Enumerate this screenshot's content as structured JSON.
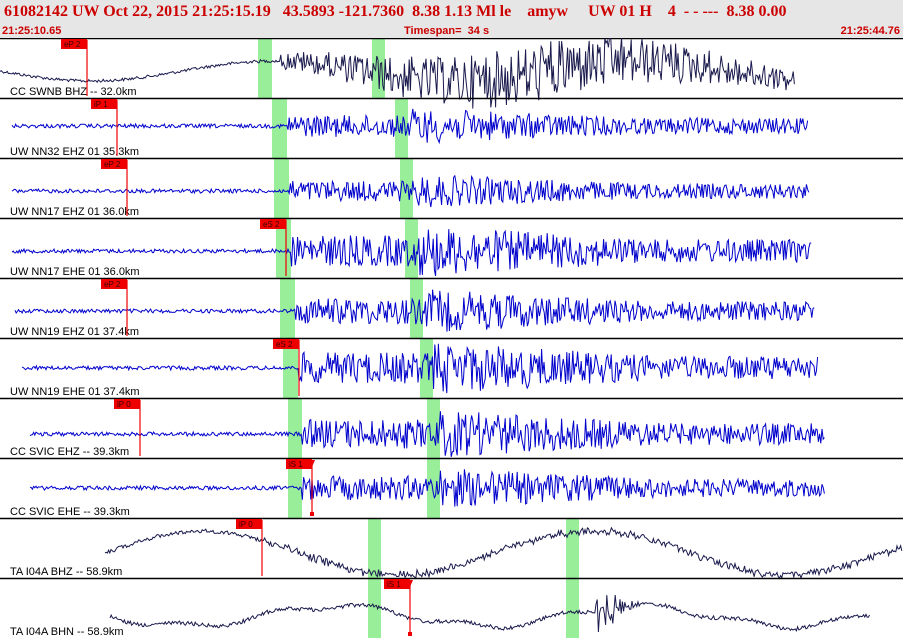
{
  "header": {
    "title": "61082142 UW Oct 22, 2015 21:25:15.19   43.5893 -121.7360  8.38 1.13 Ml le    amyw     UW 01 H    4  - - ---  8.38 0.00",
    "start_time": "21:25:10.65",
    "timespan": "Timespan=  34 s",
    "end_time": "21:25:44.76"
  },
  "colors": {
    "header_bg": "#e6e6e6",
    "header_text": "#cc0000",
    "trace_blue": "#0000cc",
    "trace_dark": "#1a1a4d",
    "pick_bg": "#ee0000",
    "pick_line": "#ee0000",
    "window_green": "#99ee99"
  },
  "icons": [
    "pick-flag-icon",
    "pick-end-marker-icon"
  ],
  "channels": [
    {
      "label": "CC SWNB BHZ -- 32.0km",
      "color": "dark",
      "picks": [
        {
          "label": "eP 2",
          "time": 3.3
        }
      ]
    },
    {
      "label": "UW NN32 EHZ 01 35.3km",
      "color": "blue",
      "picks": [
        {
          "label": "iP 1",
          "time": 4.4
        }
      ]
    },
    {
      "label": "UW NN17 EHZ 01 36.0km",
      "color": "blue",
      "picks": [
        {
          "label": "eP 2",
          "time": 4.8
        }
      ]
    },
    {
      "label": "UW NN17 EHE 01 36.0km",
      "color": "blue",
      "picks": [
        {
          "label": "eS 2",
          "time": 10.8
        }
      ]
    },
    {
      "label": "UW NN19 EHZ 01 37.4km",
      "color": "blue",
      "picks": [
        {
          "label": "eP 2",
          "time": 4.8
        }
      ]
    },
    {
      "label": "UW NN19 EHE 01 37.4km",
      "color": "blue",
      "picks": [
        {
          "label": "eS 2",
          "time": 11.3
        }
      ]
    },
    {
      "label": "CC SVIC EHZ -- 39.3km",
      "color": "blue",
      "picks": [
        {
          "label": "iP 0",
          "time": 5.3
        }
      ]
    },
    {
      "label": "CC SVIC EHE -- 39.3km",
      "color": "blue",
      "picks": [
        {
          "label": "iS 1",
          "time": 11.8
        }
      ]
    },
    {
      "label": "TA I04A BHZ -- 58.9km",
      "color": "dark",
      "picks": [
        {
          "label": "iP 0",
          "time": 9.9
        }
      ]
    },
    {
      "label": "TA I04A BHN -- 58.9km",
      "color": "dark",
      "picks": [
        {
          "label": "iS 1",
          "time": 15.5
        }
      ]
    }
  ]
}
